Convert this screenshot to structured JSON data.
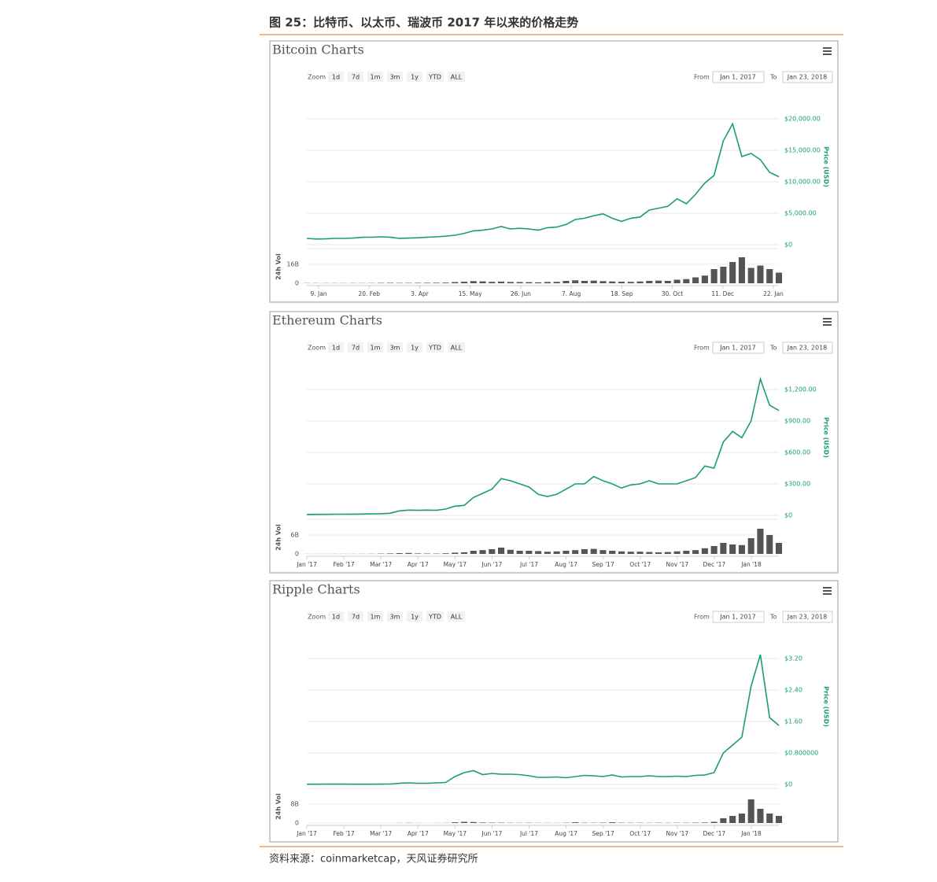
{
  "header": {
    "title": "图 25：比特币、以太币、瑞波币 2017 年以来的价格走势"
  },
  "chart_data": [
    {
      "type": "line",
      "title": "Bitcoin Charts",
      "zoom_label": "Zoom",
      "zoom_buttons": [
        "1d",
        "7d",
        "1m",
        "3m",
        "1y",
        "YTD",
        "ALL"
      ],
      "from_label": "From",
      "from_value": "Jan 1, 2017",
      "to_label": "To",
      "to_value": "Jan 23, 2018",
      "y_axis_label": "Price (USD)",
      "volume_axis_label": "24h Vol",
      "color": "#1a9e6e",
      "x_labels": [
        "9. Jan",
        "20. Feb",
        "3. Apr",
        "15. May",
        "26. Jun",
        "7. Aug",
        "18. Sep",
        "30. Oct",
        "11. Dec",
        "22. Jan"
      ],
      "values": [
        1000,
        900,
        920,
        1000,
        1000,
        1050,
        1180,
        1190,
        1250,
        1200,
        1000,
        1050,
        1100,
        1200,
        1250,
        1350,
        1500,
        1800,
        2200,
        2300,
        2500,
        2900,
        2500,
        2600,
        2500,
        2300,
        2700,
        2800,
        3200,
        4000,
        4200,
        4600,
        4900,
        4200,
        3700,
        4200,
        4400,
        5500,
        5800,
        6100,
        7300,
        6500,
        8000,
        9800,
        11000,
        16500,
        19200,
        14000,
        14500,
        13500,
        11500,
        10800
      ],
      "ylim": [
        0,
        25000
      ],
      "yticks": [
        {
          "value": 0,
          "label": "$0"
        },
        {
          "value": 5000,
          "label": "$5,000.00"
        },
        {
          "value": 10000,
          "label": "$10,000.00"
        },
        {
          "value": 15000,
          "label": "$15,000.00"
        },
        {
          "value": 20000,
          "label": "$20,000.00"
        }
      ],
      "volume": {
        "color": "#555555",
        "ylim": [
          0,
          28
        ],
        "yticks": [
          0,
          {
            "value": 16,
            "label": "16B"
          }
        ],
        "values": [
          0.15,
          0.12,
          0.13,
          0.14,
          0.13,
          0.15,
          0.17,
          0.18,
          0.3,
          0.35,
          0.3,
          0.3,
          0.35,
          0.4,
          0.45,
          0.55,
          1.0,
          1.3,
          1.8,
          1.6,
          1.2,
          1.4,
          1.1,
          1.0,
          0.9,
          0.8,
          1.1,
          1.2,
          2.0,
          2.5,
          2.0,
          2.2,
          1.8,
          1.5,
          1.3,
          1.2,
          1.5,
          2.0,
          2.2,
          2.0,
          3.0,
          3.5,
          5.0,
          6.5,
          12,
          14,
          18,
          22,
          13,
          15,
          12,
          9
        ]
      }
    },
    {
      "type": "line",
      "title": "Ethereum Charts",
      "zoom_label": "Zoom",
      "zoom_buttons": [
        "1d",
        "7d",
        "1m",
        "3m",
        "1y",
        "YTD",
        "ALL"
      ],
      "from_label": "From",
      "from_value": "Jan 1, 2017",
      "to_label": "To",
      "to_value": "Jan 23, 2018",
      "y_axis_label": "Price (USD)",
      "volume_axis_label": "24h Vol",
      "color": "#1a9e6e",
      "x_labels": [
        "Jan '17",
        "Feb '17",
        "Mar '17",
        "Apr '17",
        "May '17",
        "Jun '17",
        "Jul '17",
        "Aug '17",
        "Sep '17",
        "Oct '17",
        "Nov '17",
        "Dec '17",
        "Jan '18"
      ],
      "values": [
        8,
        10,
        10,
        11,
        11,
        12,
        13,
        14,
        16,
        20,
        43,
        50,
        48,
        50,
        48,
        60,
        88,
        95,
        170,
        210,
        250,
        350,
        330,
        300,
        270,
        200,
        180,
        200,
        250,
        300,
        300,
        370,
        330,
        300,
        260,
        290,
        300,
        330,
        300,
        300,
        300,
        330,
        360,
        470,
        450,
        700,
        800,
        740,
        900,
        1300,
        1050,
        1000
      ],
      "ylim": [
        0,
        1500
      ],
      "yticks": [
        {
          "value": 0,
          "label": "$0"
        },
        {
          "value": 300,
          "label": "$300.00"
        },
        {
          "value": 600,
          "label": "$600.00"
        },
        {
          "value": 900,
          "label": "$900.00"
        },
        {
          "value": 1200,
          "label": "$1,200.00"
        }
      ],
      "volume": {
        "color": "#555555",
        "ylim": [
          0,
          10.5
        ],
        "yticks": [
          0,
          {
            "value": 6,
            "label": "6B"
          }
        ],
        "values": [
          0.02,
          0.02,
          0.02,
          0.03,
          0.03,
          0.03,
          0.04,
          0.05,
          0.1,
          0.15,
          0.25,
          0.3,
          0.15,
          0.12,
          0.1,
          0.2,
          0.4,
          0.5,
          1.0,
          1.2,
          1.5,
          2.0,
          1.3,
          1.0,
          1.0,
          0.9,
          0.7,
          0.8,
          1.0,
          1.2,
          1.5,
          1.6,
          1.2,
          1.0,
          0.8,
          0.7,
          0.7,
          0.6,
          0.5,
          0.6,
          0.8,
          1.0,
          1.2,
          1.8,
          2.5,
          3.5,
          3.0,
          2.8,
          5,
          8,
          6,
          3.5
        ]
      }
    },
    {
      "type": "line",
      "title": "Ripple Charts",
      "zoom_label": "Zoom",
      "zoom_buttons": [
        "1d",
        "7d",
        "1m",
        "3m",
        "1y",
        "YTD",
        "ALL"
      ],
      "from_label": "From",
      "from_value": "Jan 1, 2017",
      "to_label": "To",
      "to_value": "Jan 23, 2018",
      "y_axis_label": "Price (USD)",
      "volume_axis_label": "24h Vol",
      "color": "#1a9e6e",
      "x_labels": [
        "Jan '17",
        "Feb '17",
        "Mar '17",
        "Apr '17",
        "May '17",
        "Jun '17",
        "Jul '17",
        "Aug '17",
        "Sep '17",
        "Oct '17",
        "Nov '17",
        "Dec '17",
        "Jan '18"
      ],
      "values": [
        0.006,
        0.006,
        0.007,
        0.007,
        0.007,
        0.006,
        0.006,
        0.006,
        0.008,
        0.009,
        0.03,
        0.04,
        0.03,
        0.03,
        0.04,
        0.05,
        0.2,
        0.3,
        0.35,
        0.25,
        0.28,
        0.26,
        0.26,
        0.25,
        0.22,
        0.18,
        0.18,
        0.19,
        0.17,
        0.2,
        0.23,
        0.22,
        0.2,
        0.24,
        0.19,
        0.2,
        0.2,
        0.22,
        0.2,
        0.2,
        0.21,
        0.2,
        0.23,
        0.24,
        0.3,
        0.8,
        1.0,
        1.2,
        2.5,
        3.3,
        1.7,
        1.5
      ],
      "ylim": [
        0,
        4
      ],
      "yticks": [
        {
          "value": 0,
          "label": "$0"
        },
        {
          "value": 0.8,
          "label": "$0.800000"
        },
        {
          "value": 1.6,
          "label": "$1.60"
        },
        {
          "value": 2.4,
          "label": "$2.40"
        },
        {
          "value": 3.2,
          "label": "$3.20"
        }
      ],
      "volume": {
        "color": "#555555",
        "ylim": [
          0,
          14
        ],
        "yticks": [
          0,
          {
            "value": 8,
            "label": "8B"
          }
        ],
        "values": [
          0.002,
          0.002,
          0.003,
          0.002,
          0.002,
          0.002,
          0.002,
          0.002,
          0.01,
          0.02,
          0.05,
          0.08,
          0.03,
          0.02,
          0.03,
          0.05,
          0.3,
          0.5,
          0.4,
          0.2,
          0.15,
          0.15,
          0.1,
          0.08,
          0.1,
          0.06,
          0.05,
          0.05,
          0.1,
          0.3,
          0.12,
          0.1,
          0.15,
          0.3,
          0.12,
          0.1,
          0.1,
          0.08,
          0.1,
          0.08,
          0.1,
          0.1,
          0.15,
          0.2,
          0.5,
          2,
          3,
          4,
          10,
          6,
          4,
          3
        ]
      }
    }
  ],
  "footer": {
    "source": "资料来源：coinmarketcap，天风证券研究所"
  }
}
